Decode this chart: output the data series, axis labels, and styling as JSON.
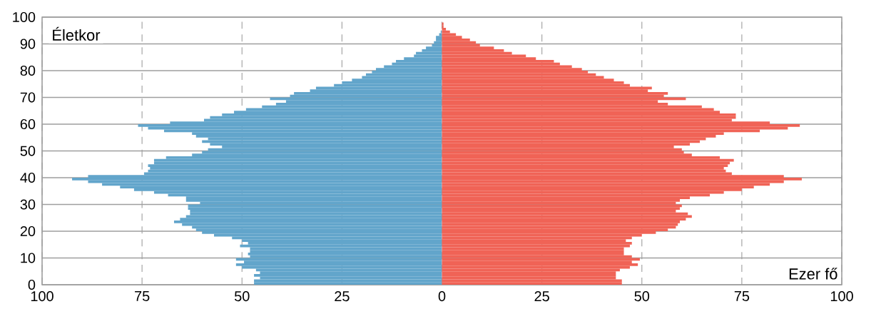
{
  "chart_data": {
    "type": "bar",
    "orientation": "horizontal",
    "xlabel": "Ezer fő",
    "ylabel": "Életkor",
    "x": [
      0.5,
      1.5,
      2.5,
      3.5,
      4.5,
      5.5,
      6.5,
      7.5,
      8.5,
      9.5,
      10.5,
      11.5,
      12.5,
      13.5,
      14.5,
      15.5,
      16.5,
      17.5,
      18.5,
      19.5,
      20.5,
      21.5,
      22.5,
      23.5,
      24.5,
      25.5,
      26.5,
      27.5,
      28.5,
      29.5,
      30.5,
      31.5,
      32.5,
      33.5,
      34.5,
      35.5,
      36.5,
      37.5,
      38.5,
      39.5,
      40.5,
      41.5,
      42.5,
      43.5,
      44.5,
      45.5,
      46.5,
      47.5,
      48.5,
      49.5,
      50.5,
      51.5,
      52.5,
      53.5,
      54.5,
      55.5,
      56.5,
      57.5,
      58.5,
      59.5,
      60.5,
      61.5,
      62.5,
      63.5,
      64.5,
      65.5,
      66.5,
      67.5,
      68.5,
      69.5,
      70.5,
      71.5,
      72.5,
      73.5,
      74.5,
      75.5,
      76.5,
      77.5,
      78.5,
      79.5,
      80.5,
      81.5,
      82.5,
      83.5,
      84.5,
      85.5,
      86.5,
      87.5,
      88.5,
      89.5,
      90.5,
      91.5,
      92.5,
      93.5,
      94.5,
      95.5,
      96.5,
      97.5
    ],
    "series": [
      {
        "color": "#62a5cb",
        "values": [
          -47,
          -47,
          -45.5,
          -47,
          -45.5,
          -46.5,
          -50,
          -51.5,
          -49.5,
          -51.5,
          -48,
          -48.5,
          -48,
          -48,
          -50.5,
          -48.5,
          -50,
          -52.5,
          -57,
          -60,
          -61.5,
          -62.5,
          -65,
          -67,
          -65.5,
          -64,
          -63,
          -63,
          -63.5,
          -63.5,
          -60.5,
          -64,
          -64,
          -68.5,
          -72,
          -77,
          -80.5,
          -85,
          -88.5,
          -92.5,
          -88.5,
          -74.5,
          -73.5,
          -73,
          -73.5,
          -72,
          -72,
          -69,
          -62.5,
          -60,
          -58.5,
          -55,
          -58,
          -60,
          -58.5,
          -61.5,
          -62.5,
          -69.5,
          -73.5,
          -76,
          -68,
          -59.5,
          -58,
          -55,
          -52,
          -49,
          -45,
          -41.5,
          -39,
          -43,
          -38,
          -37,
          -33,
          -31.5,
          -27,
          -25,
          -22.5,
          -20,
          -19,
          -17.5,
          -16.5,
          -14.5,
          -12.5,
          -11.5,
          -9.5,
          -7,
          -6.5,
          -5,
          -4,
          -2.5,
          -2,
          -1.5,
          -1.5,
          -0.7,
          -0.3,
          null,
          null,
          null
        ]
      },
      {
        "color": "#f06356",
        "values": [
          45,
          45,
          43.5,
          43.5,
          43.5,
          44.5,
          47,
          49,
          47.5,
          49.5,
          47.5,
          45.5,
          45.5,
          45.5,
          47,
          47.5,
          46,
          47.5,
          50,
          53.5,
          56.5,
          58.5,
          59,
          59.5,
          61,
          62.5,
          61.5,
          58.5,
          59.5,
          60,
          58.5,
          59.5,
          62,
          67,
          70.5,
          75,
          78,
          82,
          85.5,
          90,
          85.5,
          72.5,
          71,
          70.5,
          71.5,
          72,
          73,
          69.5,
          62.5,
          60.5,
          60,
          58,
          62,
          64.5,
          66,
          68.5,
          70.5,
          79.5,
          86.5,
          89.5,
          82,
          72.5,
          73.5,
          73.5,
          69.5,
          68,
          65,
          56.5,
          54,
          61,
          55.5,
          56.5,
          51.5,
          52.5,
          47,
          45.5,
          43,
          40.5,
          38.5,
          36.5,
          35,
          32.5,
          29.5,
          28,
          23.5,
          21,
          17.5,
          15.5,
          13,
          9.5,
          8.5,
          7,
          5,
          3.5,
          2,
          1,
          0.4,
          0.4
        ]
      }
    ],
    "xlim": [
      -100,
      100
    ],
    "xticks": [
      {
        "value": -100,
        "label": "100"
      },
      {
        "value": -75,
        "label": "75"
      },
      {
        "value": -50,
        "label": "50"
      },
      {
        "value": -25,
        "label": "25"
      },
      0,
      25,
      50,
      75,
      100
    ],
    "ylim": [
      0,
      100
    ],
    "yticks": [
      0,
      10,
      20,
      30,
      40,
      50,
      60,
      70,
      80,
      90,
      100
    ],
    "grid": true,
    "stacked": true
  }
}
